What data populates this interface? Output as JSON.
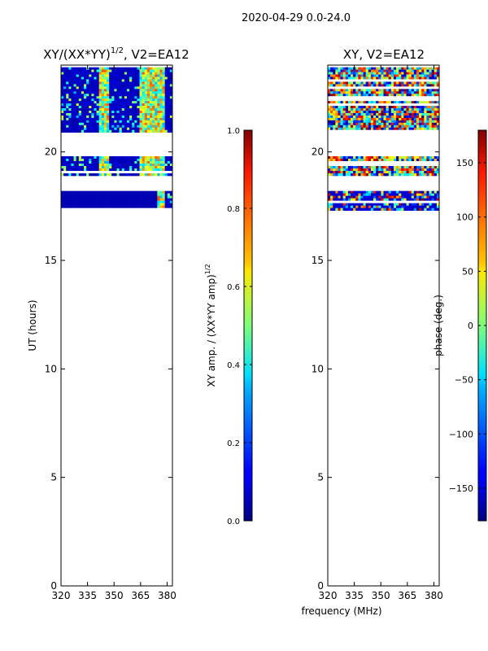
{
  "figure": {
    "suptitle": "2020-04-29 0.0-24.0",
    "xlabel": "frequency (MHz)"
  },
  "chart_data": [
    {
      "type": "heatmap",
      "title": "XY/(XX*YY)",
      "title_exponent": "1/2",
      "title_suffix": ", V2=EA12",
      "xlabel": "",
      "ylabel": "UT (hours)",
      "xlim": [
        320,
        383
      ],
      "ylim": [
        0,
        24
      ],
      "xticks": [
        320,
        335,
        350,
        365,
        380
      ],
      "yticks": [
        0,
        5,
        10,
        15,
        20
      ],
      "data_bands_ut": [
        [
          17.3,
          18.2
        ],
        [
          18.9,
          19.8
        ],
        [
          20.9,
          23.9
        ]
      ],
      "colorbar": {
        "label": "XY amp. / (XX*YY amp)",
        "label_exponent": "1/2",
        "range": [
          0.0,
          1.0
        ],
        "ticks": [
          "0.0",
          "0.2",
          "0.4",
          "0.6",
          "0.8",
          "1.0"
        ],
        "colormap": "jet"
      }
    },
    {
      "type": "heatmap",
      "title": "XY, V2=EA12",
      "xlabel": "",
      "ylabel": "",
      "xlim": [
        320,
        383
      ],
      "ylim": [
        0,
        24
      ],
      "xticks": [
        320,
        335,
        350,
        365,
        380
      ],
      "yticks": [
        0,
        5,
        10,
        15,
        20
      ],
      "data_bands_ut": [
        [
          17.3,
          18.2
        ],
        [
          18.9,
          19.8
        ],
        [
          20.9,
          23.9
        ]
      ],
      "colorbar": {
        "label": "phase (deg.)",
        "range": [
          -180,
          180
        ],
        "ticks": [
          "−150",
          "−100",
          "−50",
          "0",
          "50",
          "100",
          "150"
        ],
        "colormap": "jet"
      }
    }
  ]
}
